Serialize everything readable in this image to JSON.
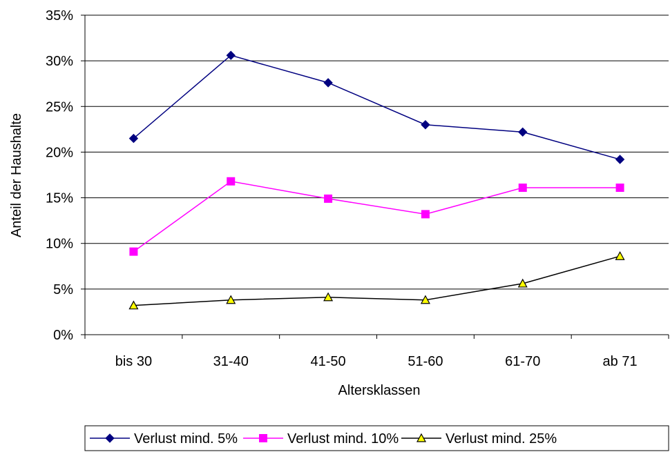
{
  "chart_data": {
    "type": "line",
    "title": "",
    "xlabel": "Altersklassen",
    "ylabel": "Anteil der Haushalte",
    "categories": [
      "bis 30",
      "31-40",
      "41-50",
      "51-60",
      "61-70",
      "ab 71"
    ],
    "ylim": [
      0,
      35
    ],
    "yticks": [
      0,
      5,
      10,
      15,
      20,
      25,
      30,
      35
    ],
    "ytick_labels": [
      "0%",
      "5%",
      "10%",
      "15%",
      "20%",
      "25%",
      "30%",
      "35%"
    ],
    "grid": "horizontal",
    "legend_position": "bottom",
    "series": [
      {
        "name": "Verlust mind. 5%",
        "values": [
          21.5,
          30.6,
          27.6,
          23.0,
          22.2,
          19.2
        ],
        "color": "#000080",
        "marker": "diamond"
      },
      {
        "name": "Verlust mind. 10%",
        "values": [
          9.1,
          16.8,
          14.9,
          13.2,
          16.1,
          16.1
        ],
        "color": "#ff00ff",
        "marker": "square"
      },
      {
        "name": "Verlust mind. 25%",
        "values": [
          3.2,
          3.8,
          4.1,
          3.8,
          5.6,
          8.6
        ],
        "color": "#000000",
        "marker": "triangle",
        "fill": "#ffff00"
      }
    ]
  }
}
